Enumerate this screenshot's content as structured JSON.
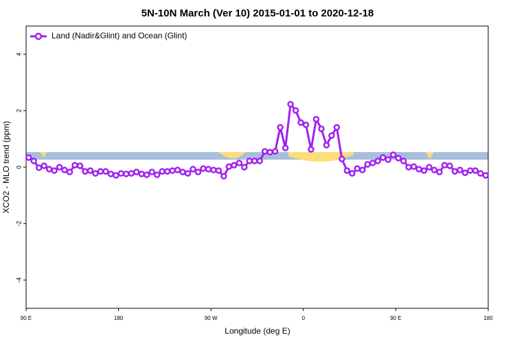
{
  "chart_data": {
    "type": "line",
    "title": "5N-10N March (Ver 10)   2015-01-01 to 2020-12-18",
    "xlabel": "Longitude (deg E)",
    "ylabel": "XCO2 - MLO trend (ppm)",
    "xlim": [
      90,
      540
    ],
    "ylim": [
      -5,
      5
    ],
    "xticks": [
      {
        "value": 90,
        "label": "90 E"
      },
      {
        "value": 180,
        "label": "180"
      },
      {
        "value": 270,
        "label": "90 W"
      },
      {
        "value": 360,
        "label": "0"
      },
      {
        "value": 450,
        "label": "90 E"
      },
      {
        "value": 540,
        "label": "180"
      }
    ],
    "yticks": [
      -4,
      -2,
      0,
      2,
      4
    ],
    "legend": "top-left",
    "x": [
      92.5,
      97.5,
      102.5,
      107.5,
      112.5,
      117.5,
      122.5,
      127.5,
      132.5,
      137.5,
      142.5,
      147.5,
      152.5,
      157.5,
      162.5,
      167.5,
      172.5,
      177.5,
      182.5,
      187.5,
      192.5,
      197.5,
      202.5,
      207.5,
      212.5,
      217.5,
      222.5,
      227.5,
      232.5,
      237.5,
      242.5,
      247.5,
      252.5,
      257.5,
      262.5,
      267.5,
      272.5,
      277.5,
      282.5,
      287.5,
      292.5,
      297.5,
      302.5,
      307.5,
      312.5,
      317.5,
      322.5,
      327.5,
      332.5,
      337.5,
      342.5,
      347.5,
      352.5,
      357.5,
      362.5,
      367.5,
      372.5,
      377.5,
      382.5,
      387.5,
      392.5,
      397.5,
      402.5,
      407.5,
      412.5,
      417.5,
      422.5,
      427.5,
      432.5,
      437.5,
      442.5,
      447.5,
      452.5,
      457.5,
      462.5,
      467.5,
      472.5,
      477.5,
      482.5,
      487.5,
      492.5,
      497.5,
      502.5,
      507.5,
      512.5,
      517.5,
      522.5,
      527.5,
      532.5,
      537.5
    ],
    "series": [
      {
        "name": "Land (Nadir&Glint) and Ocean (Glint)",
        "color": "#a020f0",
        "values": [
          0.34,
          0.22,
          -0.02,
          0.05,
          -0.07,
          -0.12,
          0,
          -0.1,
          -0.17,
          0.07,
          0.05,
          -0.15,
          -0.12,
          -0.22,
          -0.15,
          -0.15,
          -0.24,
          -0.29,
          -0.22,
          -0.24,
          -0.22,
          -0.17,
          -0.24,
          -0.27,
          -0.17,
          -0.27,
          -0.15,
          -0.15,
          -0.12,
          -0.1,
          -0.17,
          -0.22,
          -0.07,
          -0.17,
          -0.05,
          -0.07,
          -0.1,
          -0.12,
          -0.32,
          0.02,
          0.07,
          0.15,
          0,
          0.22,
          0.22,
          0.22,
          0.56,
          0.53,
          0.56,
          1.41,
          0.68,
          2.23,
          2.01,
          1.58,
          1.5,
          0.63,
          1.7,
          1.36,
          0.78,
          1.12,
          1.41,
          0.29,
          -0.12,
          -0.22,
          -0.05,
          -0.1,
          0.1,
          0.15,
          0.22,
          0.34,
          0.27,
          0.44,
          0.32,
          0.22,
          0,
          0.02,
          -0.07,
          -0.12,
          0,
          -0.1,
          -0.17,
          0.07,
          0.05,
          -0.15,
          -0.1,
          -0.2,
          -0.12,
          -0.12,
          -0.22,
          -0.29
        ]
      }
    ]
  }
}
